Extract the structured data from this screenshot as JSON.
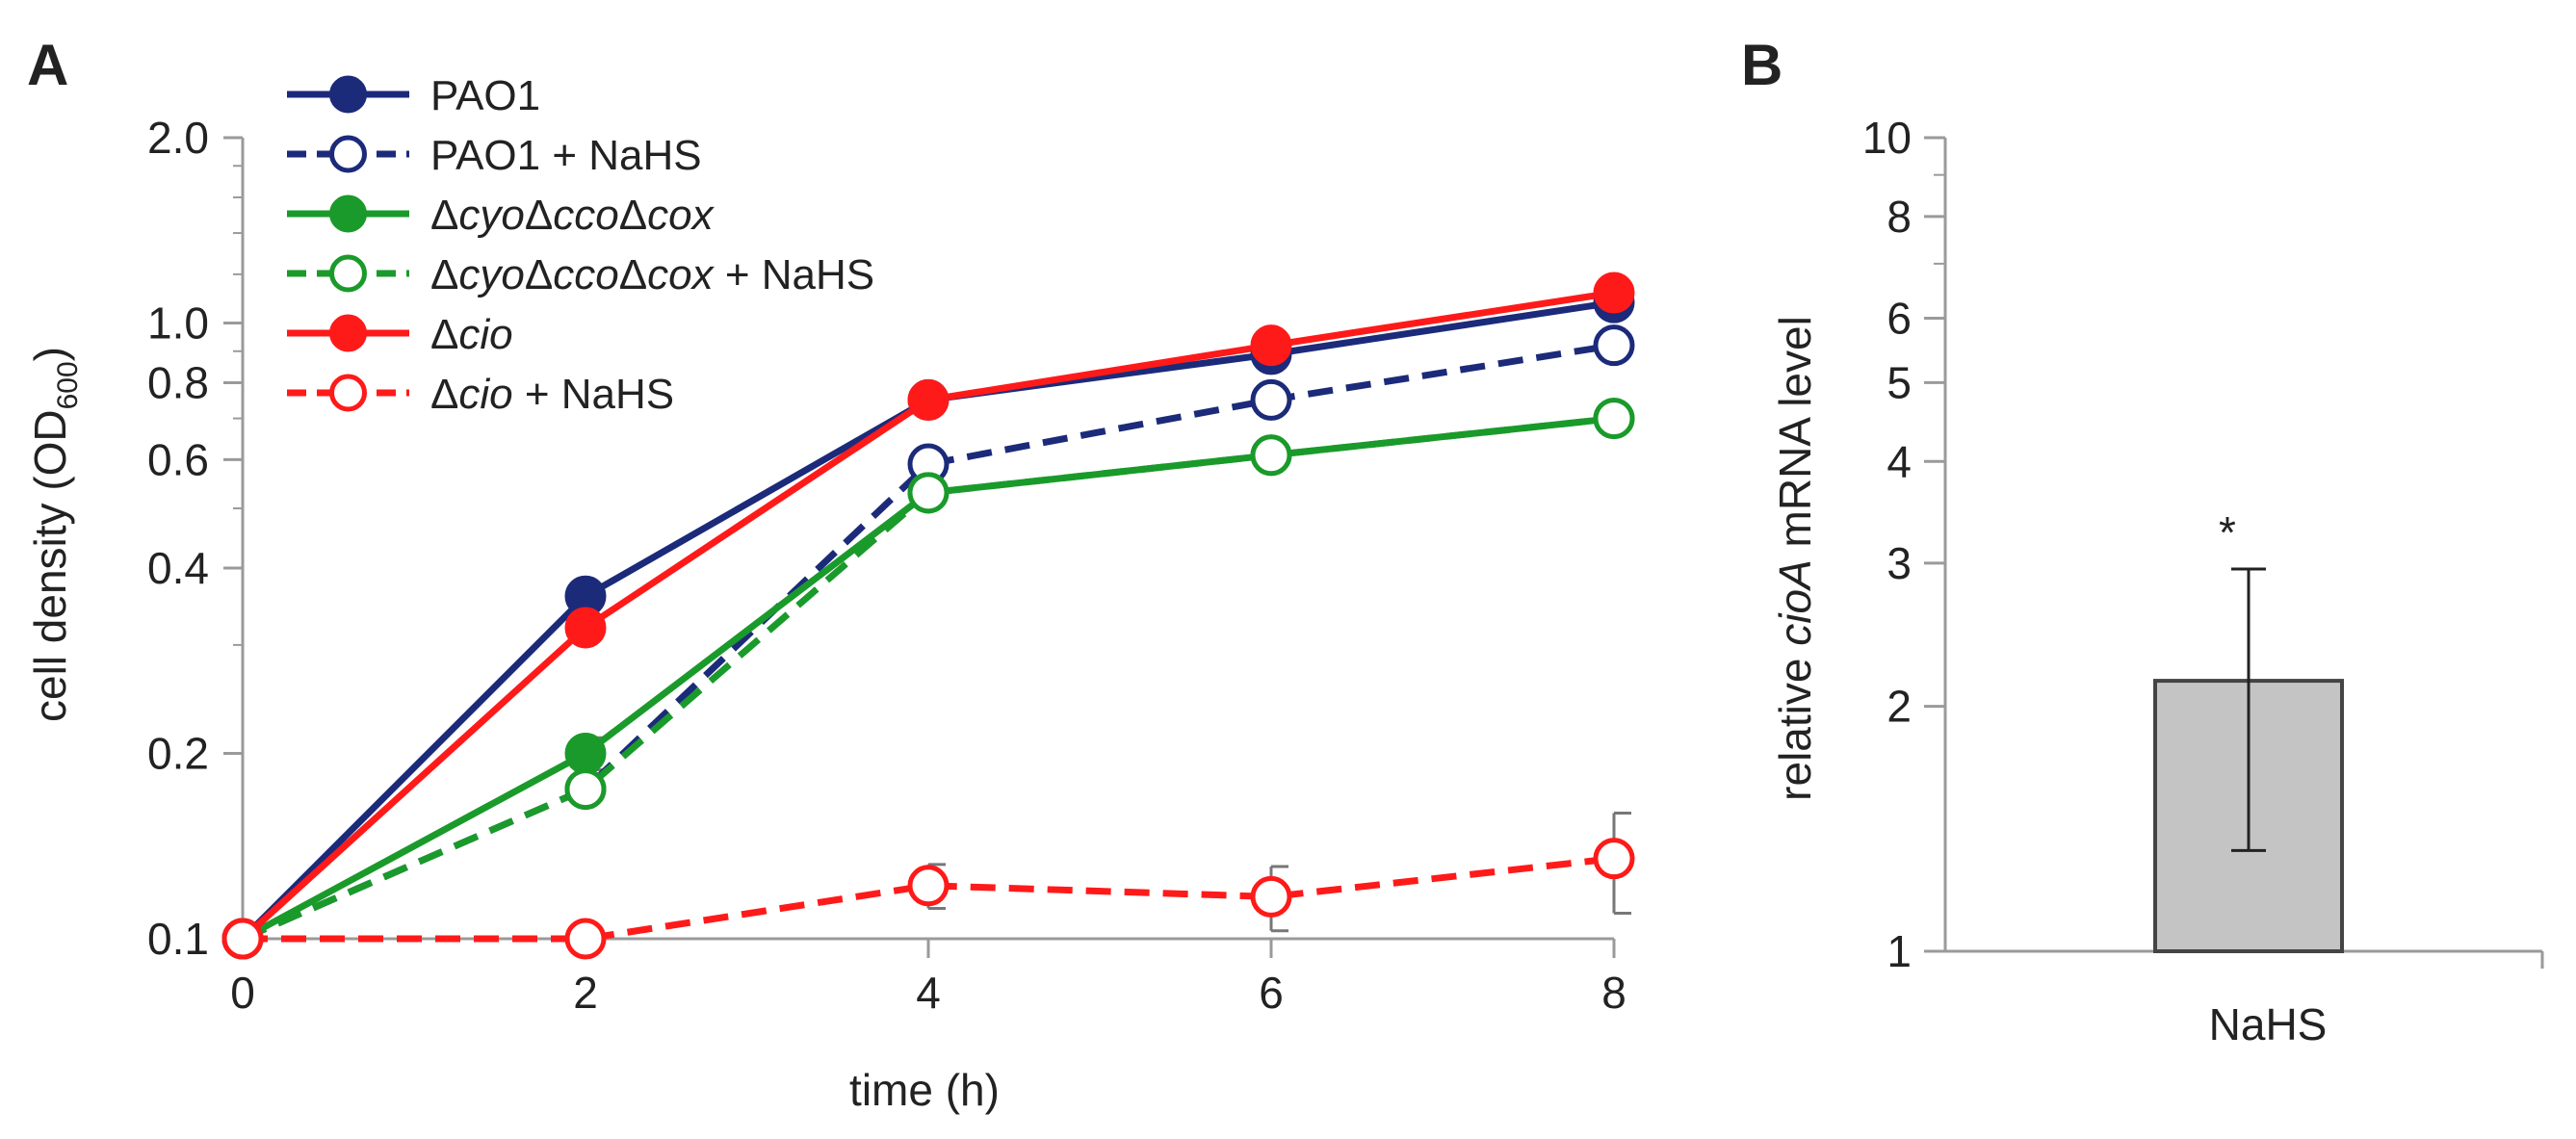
{
  "panels": {
    "a_label": "A",
    "b_label": "B"
  },
  "colors": {
    "pao1": "#1c2a7a",
    "triple": "#1a9a2a",
    "cio": "#ff1a1a",
    "bar_fill": "#c4c4c4",
    "axis": "#9a9a9a"
  },
  "chart_data": [
    {
      "type": "line",
      "panel": "A",
      "title": "",
      "xlabel": "time (h)",
      "ylabel_main": "cell density (OD",
      "ylabel_sub": "600",
      "ylabel_end": ")",
      "x": [
        0,
        2,
        4,
        6,
        8
      ],
      "xlim": [
        0,
        8
      ],
      "xticks": [
        "0",
        "2",
        "4",
        "6",
        "8"
      ],
      "yscale": "log",
      "ylim": [
        0.1,
        2.0
      ],
      "yticks": [
        {
          "value": 0.1,
          "label": "0.1"
        },
        {
          "value": 0.2,
          "label": "0.2"
        },
        {
          "value": 0.4,
          "label": "0.4"
        },
        {
          "value": 0.6,
          "label": "0.6"
        },
        {
          "value": 0.8,
          "label": "0.8"
        },
        {
          "value": 1.0,
          "label": "1.0"
        },
        {
          "value": 2.0,
          "label": "2.0"
        }
      ],
      "legend_position": "top-left",
      "series": [
        {
          "name": "PAO1",
          "name_parts": [
            {
              "t": "PAO1",
              "i": false
            }
          ],
          "color": "#1c2a7a",
          "dashed": false,
          "filled": true,
          "values": [
            0.1,
            0.36,
            0.75,
            0.89,
            1.08
          ],
          "err": [
            0,
            0,
            0,
            0,
            0
          ]
        },
        {
          "name": "PAO1 + NaHS",
          "name_parts": [
            {
              "t": "PAO1 + NaHS",
              "i": false
            }
          ],
          "color": "#1c2a7a",
          "dashed": true,
          "filled": false,
          "values": [
            0.1,
            0.175,
            0.59,
            0.75,
            0.92
          ],
          "err": [
            0,
            0,
            0,
            0,
            0
          ]
        },
        {
          "name": "ΔcyoΔccoΔcox",
          "name_parts": [
            {
              "t": "Δ",
              "i": false
            },
            {
              "t": "cyo",
              "i": true
            },
            {
              "t": "Δ",
              "i": false
            },
            {
              "t": "cco",
              "i": true
            },
            {
              "t": "Δ",
              "i": false
            },
            {
              "t": "cox",
              "i": true
            }
          ],
          "color": "#1a9a2a",
          "dashed": false,
          "filled": true,
          "values": [
            0.1,
            0.2,
            0.53,
            0.61,
            0.7
          ],
          "err": [
            0,
            0.012,
            0,
            0,
            0
          ]
        },
        {
          "name": "ΔcyoΔccoΔcox + NaHS",
          "name_parts": [
            {
              "t": "Δ",
              "i": false
            },
            {
              "t": "cyo",
              "i": true
            },
            {
              "t": "Δ",
              "i": false
            },
            {
              "t": "cco",
              "i": true
            },
            {
              "t": "Δ",
              "i": false
            },
            {
              "t": "cox",
              "i": true
            },
            {
              "t": " + NaHS",
              "i": false
            }
          ],
          "color": "#1a9a2a",
          "dashed": true,
          "filled": false,
          "values": [
            0.1,
            0.175,
            0.53,
            0.61,
            0.7
          ],
          "err": [
            0,
            0,
            0,
            0,
            0
          ]
        },
        {
          "name": "Δcio",
          "name_parts": [
            {
              "t": "Δ",
              "i": false
            },
            {
              "t": "cio",
              "i": true
            }
          ],
          "color": "#ff1a1a",
          "dashed": false,
          "filled": true,
          "values": [
            0.1,
            0.32,
            0.75,
            0.92,
            1.12
          ],
          "err": [
            0,
            0,
            0,
            0,
            0
          ]
        },
        {
          "name": "Δcio + NaHS",
          "name_parts": [
            {
              "t": "Δ",
              "i": false
            },
            {
              "t": "cio",
              "i": true
            },
            {
              "t": " + NaHS",
              "i": false
            }
          ],
          "color": "#ff1a1a",
          "dashed": true,
          "filled": false,
          "values": [
            0.1,
            0.1,
            0.122,
            0.117,
            0.135
          ],
          "err": [
            0,
            0,
            0.01,
            0.014,
            0.025
          ]
        }
      ]
    },
    {
      "type": "bar",
      "panel": "B",
      "categories": [
        "NaHS"
      ],
      "values": [
        2.15
      ],
      "err_low": 1.33,
      "err_high": 2.95,
      "significance": "*",
      "ylabel_parts": [
        {
          "t": "relative ",
          "i": false
        },
        {
          "t": "cioA",
          "i": true
        },
        {
          "t": " mRNA level",
          "i": false
        }
      ],
      "yscale": "log",
      "ylim": [
        1,
        10
      ],
      "yticks": [
        {
          "value": 1,
          "label": "1"
        },
        {
          "value": 2,
          "label": "2"
        },
        {
          "value": 3,
          "label": "3"
        },
        {
          "value": 4,
          "label": "4"
        },
        {
          "value": 5,
          "label": "5"
        },
        {
          "value": 6,
          "label": "6"
        },
        {
          "value": 8,
          "label": "8"
        },
        {
          "value": 10,
          "label": "10"
        }
      ],
      "minor_ticks": [
        7,
        9
      ]
    }
  ]
}
